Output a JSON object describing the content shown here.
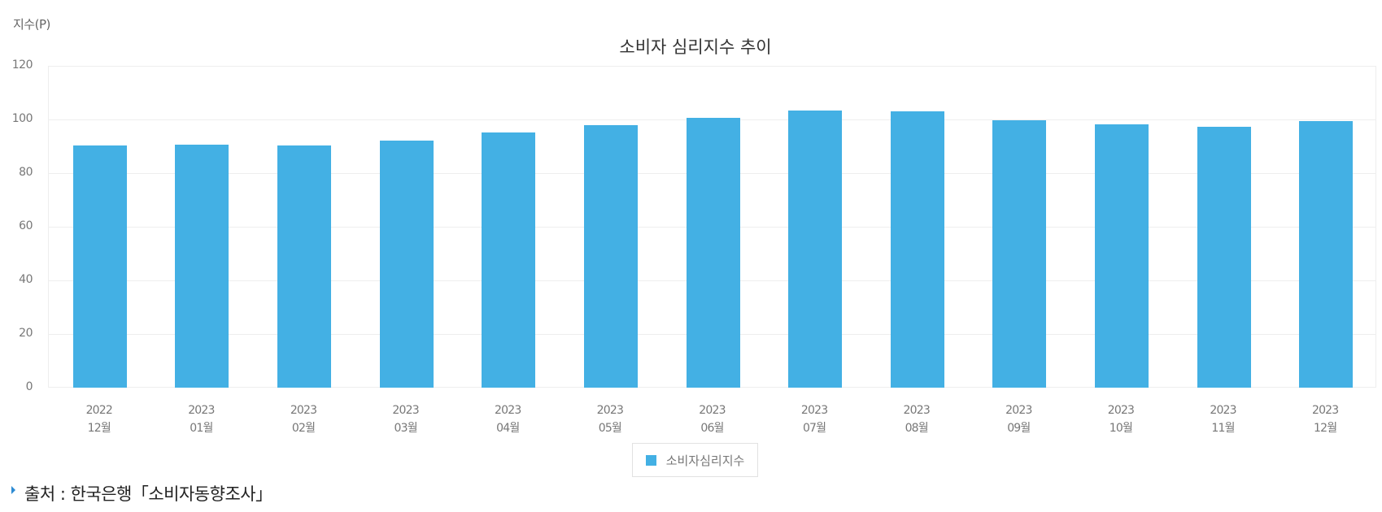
{
  "chart_data": {
    "type": "bar",
    "title": "소비자 심리지수 추이",
    "ylabel": "지수(P)",
    "xlabel": "",
    "ylim": [
      0,
      120
    ],
    "yticks": [
      0,
      20,
      40,
      60,
      80,
      100,
      120
    ],
    "grid": true,
    "legend_position": "bottom",
    "categories": [
      {
        "year": "2022",
        "month": "12월"
      },
      {
        "year": "2023",
        "month": "01월"
      },
      {
        "year": "2023",
        "month": "02월"
      },
      {
        "year": "2023",
        "month": "03월"
      },
      {
        "year": "2023",
        "month": "04월"
      },
      {
        "year": "2023",
        "month": "05월"
      },
      {
        "year": "2023",
        "month": "06월"
      },
      {
        "year": "2023",
        "month": "07월"
      },
      {
        "year": "2023",
        "month": "08월"
      },
      {
        "year": "2023",
        "month": "09월"
      },
      {
        "year": "2023",
        "month": "10월"
      },
      {
        "year": "2023",
        "month": "11월"
      },
      {
        "year": "2023",
        "month": "12월"
      }
    ],
    "series": [
      {
        "name": "소비자심리지수",
        "color": "#43b0e4",
        "values": [
          90.2,
          90.7,
          90.2,
          92.0,
          95.1,
          98.0,
          100.7,
          103.2,
          103.1,
          99.7,
          98.1,
          97.2,
          99.5
        ]
      }
    ]
  },
  "source": {
    "text": "출처 : 한국은행「소비자동향조사」"
  }
}
